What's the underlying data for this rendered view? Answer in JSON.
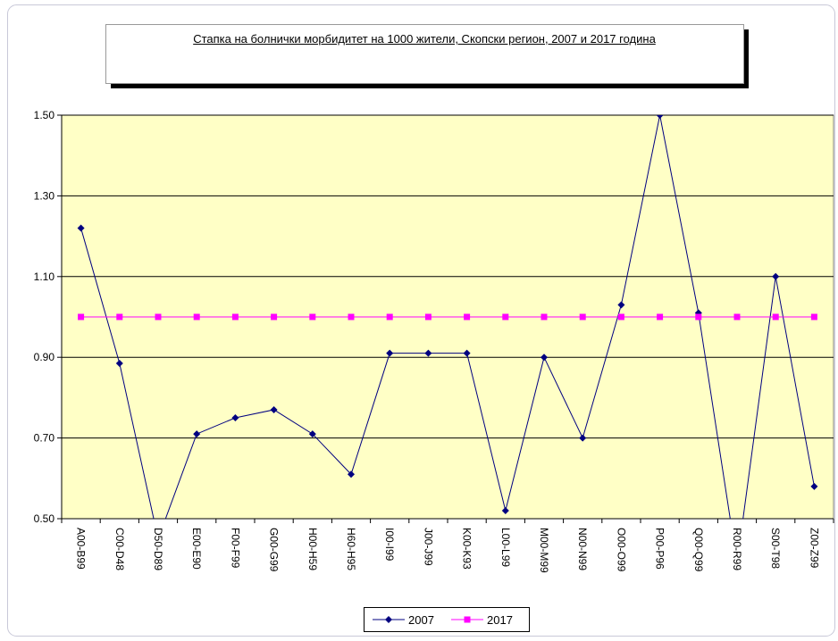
{
  "chart_data": {
    "type": "line",
    "title": "Стапка на болнички морбидитет на 1000 жители, Скопски регион, 2007 и 2017 година",
    "categories": [
      "A00-B99",
      "C00-D48",
      "D50-D89",
      "E00-E90",
      "F00-F99",
      "G00-G99",
      "H00-H59",
      "H60-H95",
      "I00-I99",
      "J00-J99",
      "K00-K93",
      "L00-L99",
      "M00-M99",
      "N00-N99",
      "O00-O99",
      "P00-P96",
      "Q00-Q99",
      "R00-R99",
      "S00-T98",
      "Z00-Z99"
    ],
    "series": [
      {
        "name": "2007",
        "color": "#000080",
        "marker": "diamond",
        "values": [
          1.22,
          0.885,
          0.45,
          0.71,
          0.75,
          0.77,
          0.71,
          0.61,
          0.91,
          0.91,
          0.91,
          0.52,
          0.9,
          0.7,
          1.03,
          1.5,
          1.01,
          0.39,
          1.1,
          0.58
        ]
      },
      {
        "name": "2017",
        "color": "#ff00ff",
        "marker": "square",
        "values": [
          1,
          1,
          1,
          1,
          1,
          1,
          1,
          1,
          1,
          1,
          1,
          1,
          1,
          1,
          1,
          1,
          1,
          1,
          1,
          1
        ]
      }
    ],
    "ylim": [
      0.5,
      1.5
    ],
    "yticks": [
      {
        "value": 0.5,
        "label": "0.50"
      },
      {
        "value": 0.7,
        "label": "0.70"
      },
      {
        "value": 0.9,
        "label": "0.90"
      },
      {
        "value": 1.1,
        "label": "1.10"
      },
      {
        "value": 1.3,
        "label": "1.30"
      },
      {
        "value": 1.5,
        "label": "1.50"
      }
    ],
    "grid": true,
    "legend": "bottom",
    "plot_background": "#ffffc6"
  }
}
